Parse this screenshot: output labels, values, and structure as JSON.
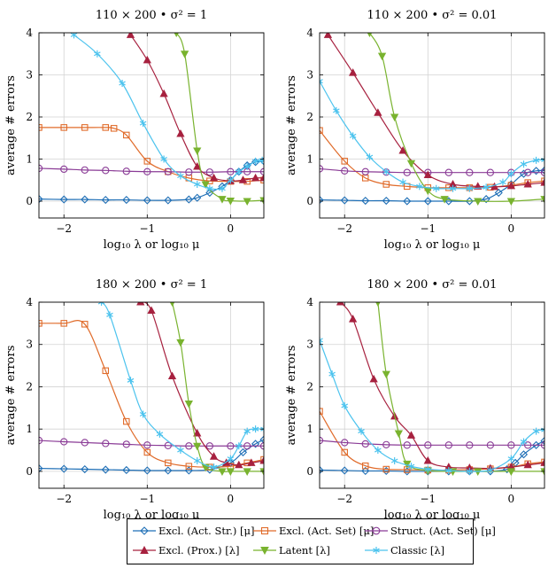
{
  "chart_data": {
    "type": "line",
    "shared": {
      "xlabel": "log₁₀ λ or log₁₀ μ",
      "ylabel": "average # errors",
      "xlim": [
        -2.3,
        0.4
      ],
      "ylim": [
        -0.4,
        4
      ],
      "xticks": [
        -2,
        -1,
        0
      ],
      "xtick_labels": [
        "−2",
        "−1",
        "0"
      ],
      "yticks": [
        0,
        1,
        2,
        3,
        4
      ],
      "ytick_labels": [
        "0",
        "1",
        "2",
        "3",
        "4"
      ],
      "grid": true,
      "legend_position": "bottom-center"
    },
    "legend": [
      {
        "key": "excl_act_str",
        "label": "Excl. (Act. Str.) [μ]",
        "color": "#1f6fb6",
        "marker": "diamond"
      },
      {
        "key": "excl_act_set",
        "label": "Excl. (Act. Set) [μ]",
        "color": "#e06b2a",
        "marker": "square"
      },
      {
        "key": "struct_act_set",
        "label": "Struct. (Act. Set) [μ]",
        "color": "#8a3b96",
        "marker": "circle"
      },
      {
        "key": "excl_prox",
        "label": "Excl. (Prox.) [λ]",
        "color": "#a7213f",
        "marker": "triangle"
      },
      {
        "key": "latent",
        "label": "Latent [λ]",
        "color": "#79b32f",
        "marker": "triangle-down"
      },
      {
        "key": "classic",
        "label": "Classic [λ]",
        "color": "#4cc3ee",
        "marker": "star"
      }
    ],
    "panels": [
      {
        "title": "110 × 200 • σ² = 1",
        "series": [
          {
            "key": "excl_act_str",
            "x": [
              -2.3,
              -2.0,
              -1.75,
              -1.5,
              -1.25,
              -1.0,
              -0.75,
              -0.5,
              -0.4,
              -0.25,
              -0.1,
              0.0,
              0.1,
              0.2,
              0.3,
              0.4
            ],
            "y": [
              0.05,
              0.04,
              0.04,
              0.03,
              0.03,
              0.02,
              0.02,
              0.04,
              0.08,
              0.2,
              0.35,
              0.5,
              0.7,
              0.85,
              0.93,
              0.95
            ]
          },
          {
            "key": "excl_act_set",
            "x": [
              -2.3,
              -2.0,
              -1.75,
              -1.5,
              -1.4,
              -1.25,
              -1.0,
              -0.75,
              -0.5,
              -0.25,
              0.0,
              0.2,
              0.4
            ],
            "y": [
              1.75,
              1.75,
              1.75,
              1.75,
              1.73,
              1.57,
              0.95,
              0.7,
              0.55,
              0.48,
              0.47,
              0.47,
              0.5
            ]
          },
          {
            "key": "struct_act_set",
            "x": [
              -2.3,
              -2.0,
              -1.75,
              -1.5,
              -1.25,
              -1.0,
              -0.75,
              -0.5,
              -0.25,
              0.0,
              0.2,
              0.4
            ],
            "y": [
              0.78,
              0.76,
              0.74,
              0.73,
              0.71,
              0.7,
              0.7,
              0.69,
              0.69,
              0.7,
              0.7,
              0.7
            ]
          },
          {
            "key": "excl_prox",
            "x": [
              -1.2,
              -1.0,
              -0.8,
              -0.6,
              -0.4,
              -0.2,
              0.0,
              0.15,
              0.3,
              0.4
            ],
            "y": [
              3.95,
              3.35,
              2.55,
              1.6,
              0.82,
              0.55,
              0.48,
              0.5,
              0.55,
              0.55
            ]
          },
          {
            "key": "latent",
            "x": [
              -0.65,
              -0.55,
              -0.4,
              -0.3,
              -0.1,
              0.0,
              0.2,
              0.4
            ],
            "y": [
              4.0,
              3.5,
              1.2,
              0.4,
              0.05,
              0.01,
              0.0,
              0.02
            ]
          },
          {
            "key": "classic",
            "x": [
              -1.88,
              -1.6,
              -1.3,
              -1.05,
              -0.8,
              -0.6,
              -0.4,
              -0.25,
              -0.1,
              0.0,
              0.1,
              0.2,
              0.3,
              0.38
            ],
            "y": [
              3.95,
              3.5,
              2.8,
              1.85,
              1.0,
              0.6,
              0.4,
              0.3,
              0.3,
              0.5,
              0.7,
              0.82,
              0.95,
              0.97
            ]
          }
        ]
      },
      {
        "title": "110 × 200 • σ² = 0.01",
        "series": [
          {
            "key": "excl_act_str",
            "x": [
              -2.3,
              -2.0,
              -1.75,
              -1.5,
              -1.25,
              -1.0,
              -0.75,
              -0.5,
              -0.3,
              -0.15,
              0.0,
              0.15,
              0.3,
              0.4
            ],
            "y": [
              0.03,
              0.02,
              0.01,
              0.01,
              0.0,
              0.0,
              0.0,
              0.0,
              0.05,
              0.2,
              0.4,
              0.65,
              0.72,
              0.73
            ]
          },
          {
            "key": "excl_act_set",
            "x": [
              -2.3,
              -2.0,
              -1.75,
              -1.5,
              -1.25,
              -1.0,
              -0.75,
              -0.5,
              -0.25,
              0.0,
              0.2,
              0.4
            ],
            "y": [
              1.68,
              0.95,
              0.55,
              0.4,
              0.35,
              0.32,
              0.32,
              0.32,
              0.33,
              0.38,
              0.44,
              0.48
            ]
          },
          {
            "key": "struct_act_set",
            "x": [
              -2.3,
              -2.0,
              -1.75,
              -1.5,
              -1.25,
              -1.0,
              -0.75,
              -0.5,
              -0.25,
              0.0,
              0.2,
              0.4
            ],
            "y": [
              0.77,
              0.72,
              0.7,
              0.69,
              0.68,
              0.68,
              0.68,
              0.68,
              0.68,
              0.68,
              0.68,
              0.68
            ]
          },
          {
            "key": "excl_prox",
            "x": [
              -2.2,
              -1.9,
              -1.6,
              -1.3,
              -1.0,
              -0.7,
              -0.4,
              -0.2,
              0.0,
              0.2,
              0.4
            ],
            "y": [
              3.95,
              3.05,
              2.1,
              1.2,
              0.62,
              0.4,
              0.35,
              0.34,
              0.36,
              0.4,
              0.44
            ]
          },
          {
            "key": "latent",
            "x": [
              -1.7,
              -1.55,
              -1.4,
              -1.2,
              -1.0,
              -0.8,
              -0.4,
              0.0,
              0.4
            ],
            "y": [
              4.0,
              3.45,
              2.0,
              0.9,
              0.25,
              0.05,
              0.0,
              0.0,
              0.05
            ]
          },
          {
            "key": "classic",
            "x": [
              -2.3,
              -2.1,
              -1.9,
              -1.7,
              -1.5,
              -1.3,
              -1.1,
              -0.9,
              -0.7,
              -0.5,
              -0.3,
              -0.1,
              0.0,
              0.15,
              0.3,
              0.4
            ],
            "y": [
              2.85,
              2.15,
              1.55,
              1.05,
              0.7,
              0.45,
              0.35,
              0.3,
              0.3,
              0.3,
              0.33,
              0.45,
              0.65,
              0.88,
              0.97,
              0.98
            ]
          }
        ]
      },
      {
        "title": "180 × 200 • σ² = 1",
        "series": [
          {
            "key": "excl_act_str",
            "x": [
              -2.3,
              -2.0,
              -1.75,
              -1.5,
              -1.25,
              -1.0,
              -0.75,
              -0.5,
              -0.25,
              0.0,
              0.15,
              0.3,
              0.4
            ],
            "y": [
              0.07,
              0.06,
              0.05,
              0.04,
              0.03,
              0.02,
              0.02,
              0.02,
              0.04,
              0.2,
              0.45,
              0.65,
              0.75
            ]
          },
          {
            "key": "excl_act_set",
            "x": [
              -2.3,
              -2.0,
              -1.75,
              -1.5,
              -1.25,
              -1.0,
              -0.75,
              -0.5,
              -0.25,
              0.0,
              0.2,
              0.4
            ],
            "y": [
              3.5,
              3.5,
              3.48,
              2.38,
              1.18,
              0.45,
              0.2,
              0.12,
              0.1,
              0.12,
              0.2,
              0.28
            ]
          },
          {
            "key": "struct_act_set",
            "x": [
              -2.3,
              -2.0,
              -1.75,
              -1.5,
              -1.25,
              -1.0,
              -0.75,
              -0.5,
              -0.25,
              0.0,
              0.2,
              0.4
            ],
            "y": [
              0.73,
              0.7,
              0.68,
              0.66,
              0.64,
              0.62,
              0.61,
              0.6,
              0.6,
              0.6,
              0.6,
              0.6
            ]
          },
          {
            "key": "excl_prox",
            "x": [
              -1.08,
              -0.95,
              -0.7,
              -0.4,
              -0.2,
              -0.05,
              0.1,
              0.25,
              0.4
            ],
            "y": [
              4.0,
              3.8,
              2.25,
              0.9,
              0.35,
              0.2,
              0.15,
              0.2,
              0.25
            ]
          },
          {
            "key": "latent",
            "x": [
              -0.7,
              -0.6,
              -0.5,
              -0.4,
              -0.3,
              -0.1,
              0.0,
              0.2,
              0.4
            ],
            "y": [
              4.0,
              3.05,
              1.6,
              0.6,
              0.1,
              0.0,
              0.0,
              0.0,
              0.0
            ]
          },
          {
            "key": "classic",
            "x": [
              -1.55,
              -1.45,
              -1.2,
              -1.05,
              -0.85,
              -0.6,
              -0.4,
              -0.2,
              0.0,
              0.1,
              0.2,
              0.3,
              0.4
            ],
            "y": [
              4.0,
              3.7,
              2.15,
              1.35,
              0.88,
              0.5,
              0.25,
              0.1,
              0.3,
              0.6,
              0.95,
              1.0,
              1.0
            ]
          }
        ]
      },
      {
        "title": "180 × 200 • σ² = 0.01",
        "series": [
          {
            "key": "excl_act_str",
            "x": [
              -2.3,
              -2.0,
              -1.75,
              -1.5,
              -1.25,
              -1.0,
              -0.75,
              -0.5,
              -0.25,
              -0.05,
              0.05,
              0.15,
              0.3,
              0.4
            ],
            "y": [
              0.03,
              0.02,
              0.01,
              0.01,
              0.0,
              0.0,
              0.0,
              0.0,
              0.0,
              0.05,
              0.2,
              0.4,
              0.62,
              0.72
            ]
          },
          {
            "key": "excl_act_set",
            "x": [
              -2.3,
              -2.0,
              -1.75,
              -1.5,
              -1.25,
              -1.0,
              -0.75,
              -0.5,
              -0.25,
              0.0,
              0.2,
              0.4
            ],
            "y": [
              1.42,
              0.45,
              0.13,
              0.05,
              0.04,
              0.03,
              0.03,
              0.04,
              0.06,
              0.1,
              0.18,
              0.22
            ]
          },
          {
            "key": "struct_act_set",
            "x": [
              -2.3,
              -2.0,
              -1.75,
              -1.5,
              -1.25,
              -1.0,
              -0.75,
              -0.5,
              -0.25,
              0.0,
              0.2,
              0.4
            ],
            "y": [
              0.73,
              0.68,
              0.65,
              0.63,
              0.62,
              0.62,
              0.62,
              0.62,
              0.62,
              0.62,
              0.62,
              0.62
            ]
          },
          {
            "key": "excl_prox",
            "x": [
              -2.05,
              -1.9,
              -1.65,
              -1.4,
              -1.2,
              -1.0,
              -0.75,
              -0.5,
              -0.25,
              0.0,
              0.2,
              0.4
            ],
            "y": [
              4.0,
              3.6,
              2.18,
              1.3,
              0.85,
              0.25,
              0.1,
              0.08,
              0.07,
              0.1,
              0.15,
              0.2
            ]
          },
          {
            "key": "latent",
            "x": [
              -1.6,
              -1.5,
              -1.35,
              -1.25,
              -1.0,
              -0.7,
              -0.4,
              0.0,
              0.4
            ],
            "y": [
              4.0,
              2.3,
              0.9,
              0.18,
              0.02,
              0.0,
              0.0,
              0.0,
              0.0
            ]
          },
          {
            "key": "classic",
            "x": [
              -2.3,
              -2.15,
              -2.0,
              -1.8,
              -1.6,
              -1.4,
              -1.2,
              -1.0,
              -0.75,
              -0.5,
              -0.25,
              0.0,
              0.15,
              0.3,
              0.4
            ],
            "y": [
              3.1,
              2.3,
              1.55,
              0.95,
              0.5,
              0.25,
              0.12,
              0.05,
              0.02,
              0.0,
              0.03,
              0.3,
              0.7,
              0.95,
              0.98
            ]
          }
        ]
      }
    ]
  }
}
